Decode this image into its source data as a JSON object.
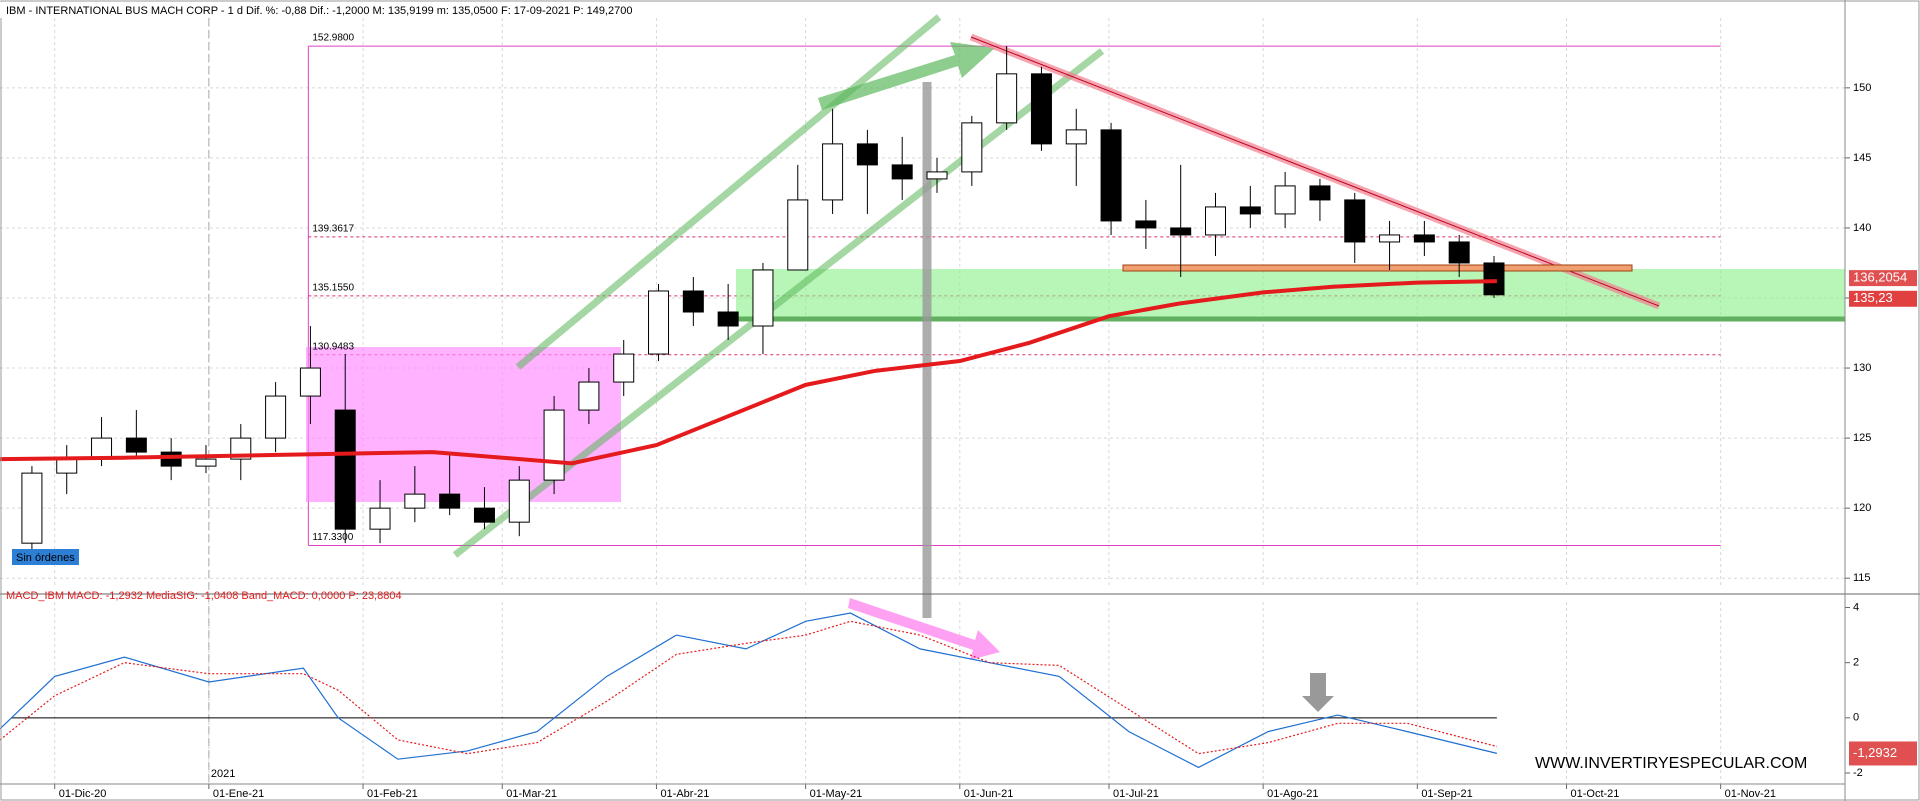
{
  "chart_data": [
    {
      "type": "candlestick",
      "title": "IBM - INTERNATIONAL BUS MACH CORP - 1 d  Dif. %: -0,88  Dif.: -1,2000  M: 135,9199  m: 135,0500  F: 17-09-2021  P: 149,2700",
      "xlim": [
        "2020-11-20",
        "2021-11-26"
      ],
      "xticks": [
        {
          "value": "2020-12-01",
          "label": "01-Dic-20"
        },
        {
          "value": "2021-01-01",
          "label": "01-Ene-21"
        },
        {
          "value": "2021-02-01",
          "label": "01-Feb-21"
        },
        {
          "value": "2021-03-01",
          "label": "01-Mar-21"
        },
        {
          "value": "2021-04-01",
          "label": "01-Abr-21"
        },
        {
          "value": "2021-05-01",
          "label": "01-May-21"
        },
        {
          "value": "2021-06-01",
          "label": "01-Jun-21"
        },
        {
          "value": "2021-07-01",
          "label": "01-Jul-21"
        },
        {
          "value": "2021-08-01",
          "label": "01-Ago-21"
        },
        {
          "value": "2021-09-01",
          "label": "01-Sep-21"
        },
        {
          "value": "2021-10-01",
          "label": "01-Oct-21"
        },
        {
          "value": "2021-11-01",
          "label": "01-Nov-21"
        }
      ],
      "year_marker": {
        "value": "2021-01-01",
        "label": "2021"
      },
      "ylim": [
        114.3,
        154.7
      ],
      "yticks": [
        115,
        120,
        125,
        130,
        135,
        140,
        145,
        150
      ],
      "grid": true,
      "up_color": "#ffffff",
      "down_color": "#000000",
      "candles": {
        "x": [
          "2020-11-23",
          "2020-11-30",
          "2020-12-07",
          "2020-12-14",
          "2020-12-21",
          "2020-12-28",
          "2021-01-04",
          "2021-01-11",
          "2021-01-18",
          "2021-01-25",
          "2021-02-01",
          "2021-02-08",
          "2021-02-15",
          "2021-02-22",
          "2021-03-01",
          "2021-03-08",
          "2021-03-15",
          "2021-03-22",
          "2021-03-29",
          "2021-04-05",
          "2021-04-12",
          "2021-04-19",
          "2021-04-26",
          "2021-05-03",
          "2021-05-10",
          "2021-05-17",
          "2021-05-24",
          "2021-05-31",
          "2021-06-07",
          "2021-06-14",
          "2021-06-21",
          "2021-06-28",
          "2021-07-05",
          "2021-07-12",
          "2021-07-19",
          "2021-07-26",
          "2021-08-02",
          "2021-08-09",
          "2021-08-16",
          "2021-08-23",
          "2021-08-30",
          "2021-09-06",
          "2021-09-13"
        ],
        "open": [
          117.5,
          122.5,
          123.5,
          125,
          124,
          123,
          123.5,
          125,
          128,
          127,
          118.5,
          120,
          121,
          120,
          119,
          122,
          127,
          129,
          131,
          135.5,
          134,
          133,
          137,
          142,
          146,
          144.5,
          143.5,
          144,
          147.5,
          151,
          146,
          147,
          140.5,
          140,
          139.5,
          141.5,
          141,
          143,
          142,
          139,
          139.5,
          139,
          137.5
        ],
        "high": [
          123,
          124.5,
          126.5,
          127,
          125,
          124.5,
          126,
          129,
          133,
          131,
          122,
          123,
          124,
          121.5,
          123,
          128,
          130,
          132,
          136,
          136.5,
          136,
          137.5,
          144.5,
          148.5,
          147,
          146.5,
          145,
          148,
          152.98,
          151.5,
          148.5,
          147.5,
          142,
          144.5,
          142.5,
          143,
          144,
          143.5,
          142.5,
          140.5,
          140.5,
          139.5,
          138
        ],
        "low": [
          117,
          121,
          123,
          123.5,
          122,
          122.5,
          122,
          124,
          126,
          117.5,
          117.5,
          119,
          119.5,
          118.5,
          118,
          121,
          126,
          128,
          130.5,
          133,
          132,
          131,
          139,
          141,
          141,
          142,
          142.5,
          143,
          147,
          145.5,
          143,
          139.5,
          138.5,
          136.5,
          138,
          140,
          140,
          140.5,
          137.5,
          137,
          138,
          136.5,
          135
        ],
        "close": [
          122.5,
          123.5,
          125,
          124,
          123,
          123.5,
          125,
          128,
          130,
          118.5,
          120,
          121,
          120,
          119,
          122,
          127,
          129,
          131,
          135.5,
          134,
          133,
          137,
          142,
          146,
          144.5,
          143.5,
          144,
          147.5,
          151,
          146,
          147,
          140.5,
          140,
          139.5,
          141.5,
          141,
          143,
          142,
          139,
          139.5,
          139,
          137.5,
          135.23
        ]
      },
      "moving_average": {
        "color": "#e41a1c",
        "x": [
          "2020-11-20",
          "2020-12-15",
          "2021-01-15",
          "2021-02-15",
          "2021-03-15",
          "2021-04-01",
          "2021-04-15",
          "2021-05-01",
          "2021-05-15",
          "2021-06-01",
          "2021-06-15",
          "2021-07-01",
          "2021-07-15",
          "2021-08-01",
          "2021-08-15",
          "2021-09-01",
          "2021-09-17"
        ],
        "values": [
          123.5,
          123.6,
          123.8,
          124,
          123.2,
          124.5,
          126.5,
          128.8,
          129.8,
          130.5,
          131.8,
          133.7,
          134.6,
          135.4,
          135.8,
          136.1,
          136.2
        ]
      },
      "fib_levels": [
        {
          "value": 152.98,
          "label": "152.9800"
        },
        {
          "value": 139.3617,
          "label": "139.3617"
        },
        {
          "value": 135.155,
          "label": "135.1550"
        },
        {
          "value": 130.9483,
          "label": "130.9483"
        },
        {
          "value": 117.33,
          "label": "117.3300"
        }
      ],
      "fib_start": "2021-01-21",
      "fib_end": "2021-11-01",
      "last_ma": {
        "value": 136.2054,
        "label": "136,2054"
      },
      "last_price": {
        "value": 135.23,
        "label": "135,23"
      },
      "order_status": "Sin órdenes",
      "watermark": "WWW.INVERTIRYESPECULAR.COM"
    },
    {
      "type": "line",
      "title": "MACD_IBM  MACD: -1,2932  MediaSIG: -1,0408  Band_MACD: 0,0000  P: 23,8804",
      "ylim": [
        -2.4,
        4.2
      ],
      "yticks": [
        4,
        2,
        0,
        -2
      ],
      "zero_line_end": "2021-09-17",
      "last_value": {
        "value": -1.2932,
        "label": "-1,2932"
      },
      "series": [
        {
          "color": "#1f6fd1",
          "style": "solid",
          "x": [
            "2020-11-20",
            "2020-12-01",
            "2020-12-15",
            "2021-01-01",
            "2021-01-20",
            "2021-01-27",
            "2021-02-08",
            "2021-02-22",
            "2021-03-08",
            "2021-03-22",
            "2021-04-05",
            "2021-04-19",
            "2021-05-01",
            "2021-05-10",
            "2021-05-24",
            "2021-06-07",
            "2021-06-21",
            "2021-07-05",
            "2021-07-19",
            "2021-08-02",
            "2021-08-16",
            "2021-08-30",
            "2021-09-17"
          ],
          "values": [
            -0.4,
            1.5,
            2.2,
            1.3,
            1.8,
            0,
            -1.5,
            -1.2,
            -0.5,
            1.5,
            3.0,
            2.5,
            3.5,
            3.8,
            2.5,
            2.0,
            1.5,
            -0.5,
            -1.8,
            -0.5,
            0.1,
            -0.5,
            -1.29
          ]
        },
        {
          "color": "#e41a1c",
          "style": "dotted",
          "x": [
            "2020-11-20",
            "2020-12-01",
            "2020-12-15",
            "2021-01-01",
            "2021-01-20",
            "2021-01-27",
            "2021-02-08",
            "2021-02-22",
            "2021-03-08",
            "2021-03-22",
            "2021-04-05",
            "2021-04-19",
            "2021-05-01",
            "2021-05-10",
            "2021-05-24",
            "2021-06-07",
            "2021-06-21",
            "2021-07-05",
            "2021-07-19",
            "2021-08-02",
            "2021-08-16",
            "2021-08-30",
            "2021-09-17"
          ],
          "values": [
            -0.8,
            0.8,
            2.0,
            1.6,
            1.6,
            1.0,
            -0.8,
            -1.3,
            -0.9,
            0.6,
            2.3,
            2.7,
            3.0,
            3.5,
            3.0,
            2.0,
            1.9,
            0.3,
            -1.3,
            -0.9,
            -0.2,
            -0.2,
            -1.04
          ]
        }
      ]
    }
  ]
}
